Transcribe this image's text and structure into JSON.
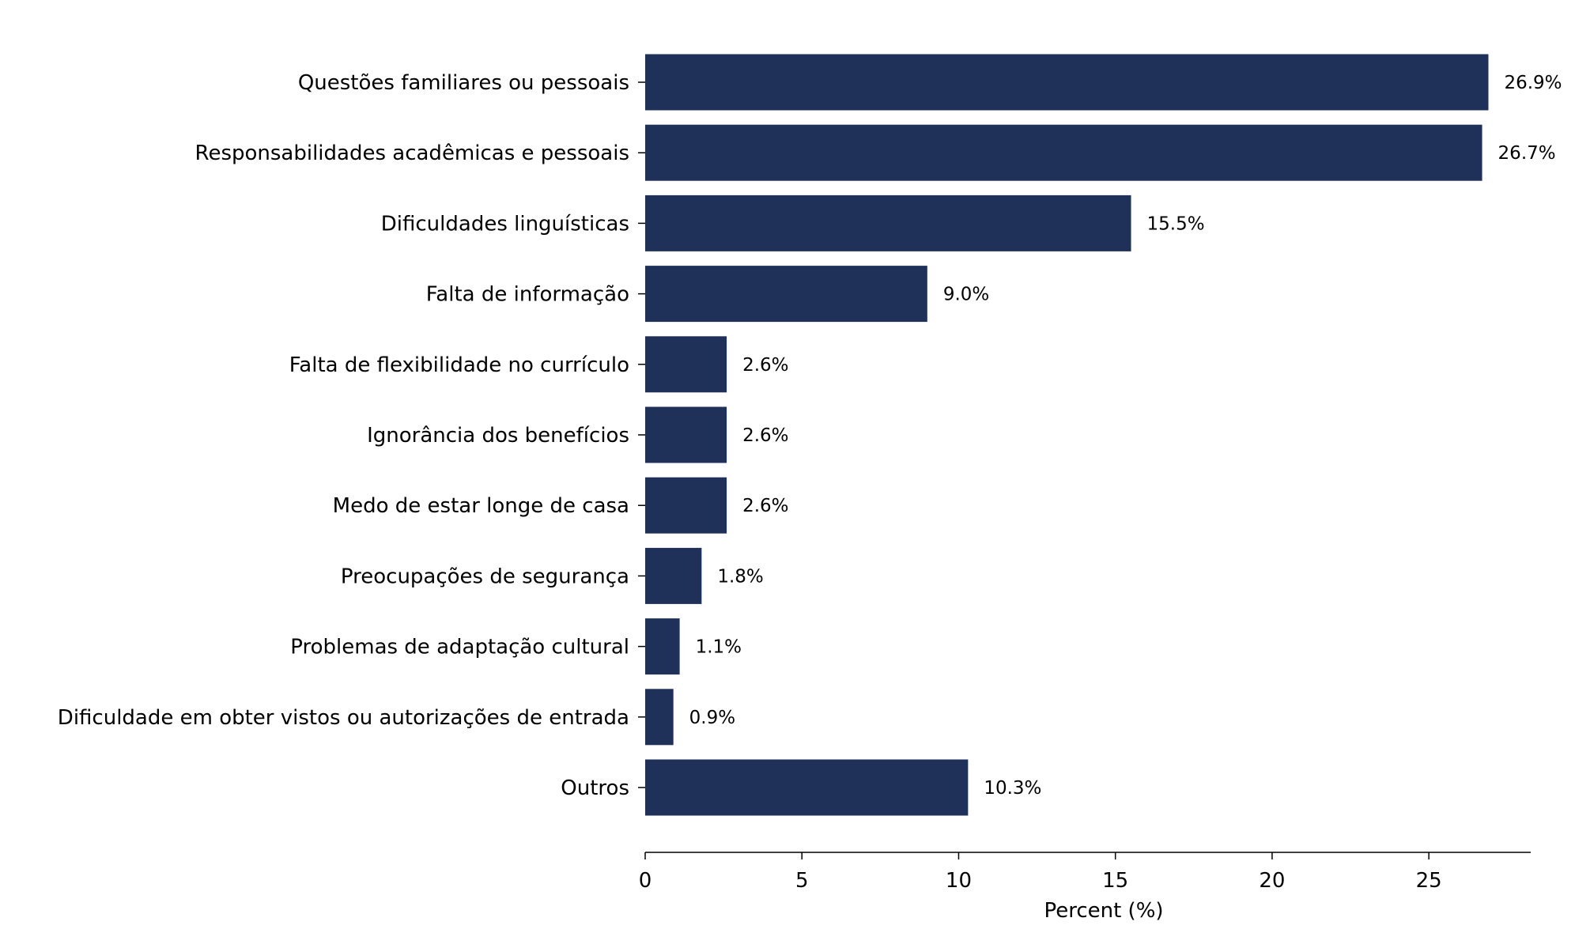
{
  "chart_data": {
    "type": "bar",
    "orientation": "horizontal",
    "categories": [
      "Questões familiares ou pessoais",
      "Responsabilidades acadêmicas e pessoais",
      "Dificuldades linguísticas",
      "Falta de informação",
      "Falta de flexibilidade no currículo",
      "Ignorância dos benefícios",
      "Medo de estar longe de casa",
      "Preocupações de segurança",
      "Problemas de adaptação cultural",
      "Dificuldade em obter vistos ou autorizações de entrada",
      "Outros"
    ],
    "values": [
      26.9,
      26.7,
      15.5,
      9.0,
      2.6,
      2.6,
      2.6,
      1.8,
      1.1,
      0.9,
      10.3
    ],
    "value_labels": [
      "26.9%",
      "26.7%",
      "15.5%",
      "9.0%",
      "2.6%",
      "2.6%",
      "2.6%",
      "1.8%",
      "1.1%",
      "0.9%",
      "10.3%"
    ],
    "xlabel": "Percent (%)",
    "ylabel": "",
    "title": "",
    "xlim": [
      0,
      28.25
    ],
    "xticks": [
      0,
      5,
      10,
      15,
      20,
      25
    ],
    "grid": false,
    "bar_color": "#1f3159"
  }
}
